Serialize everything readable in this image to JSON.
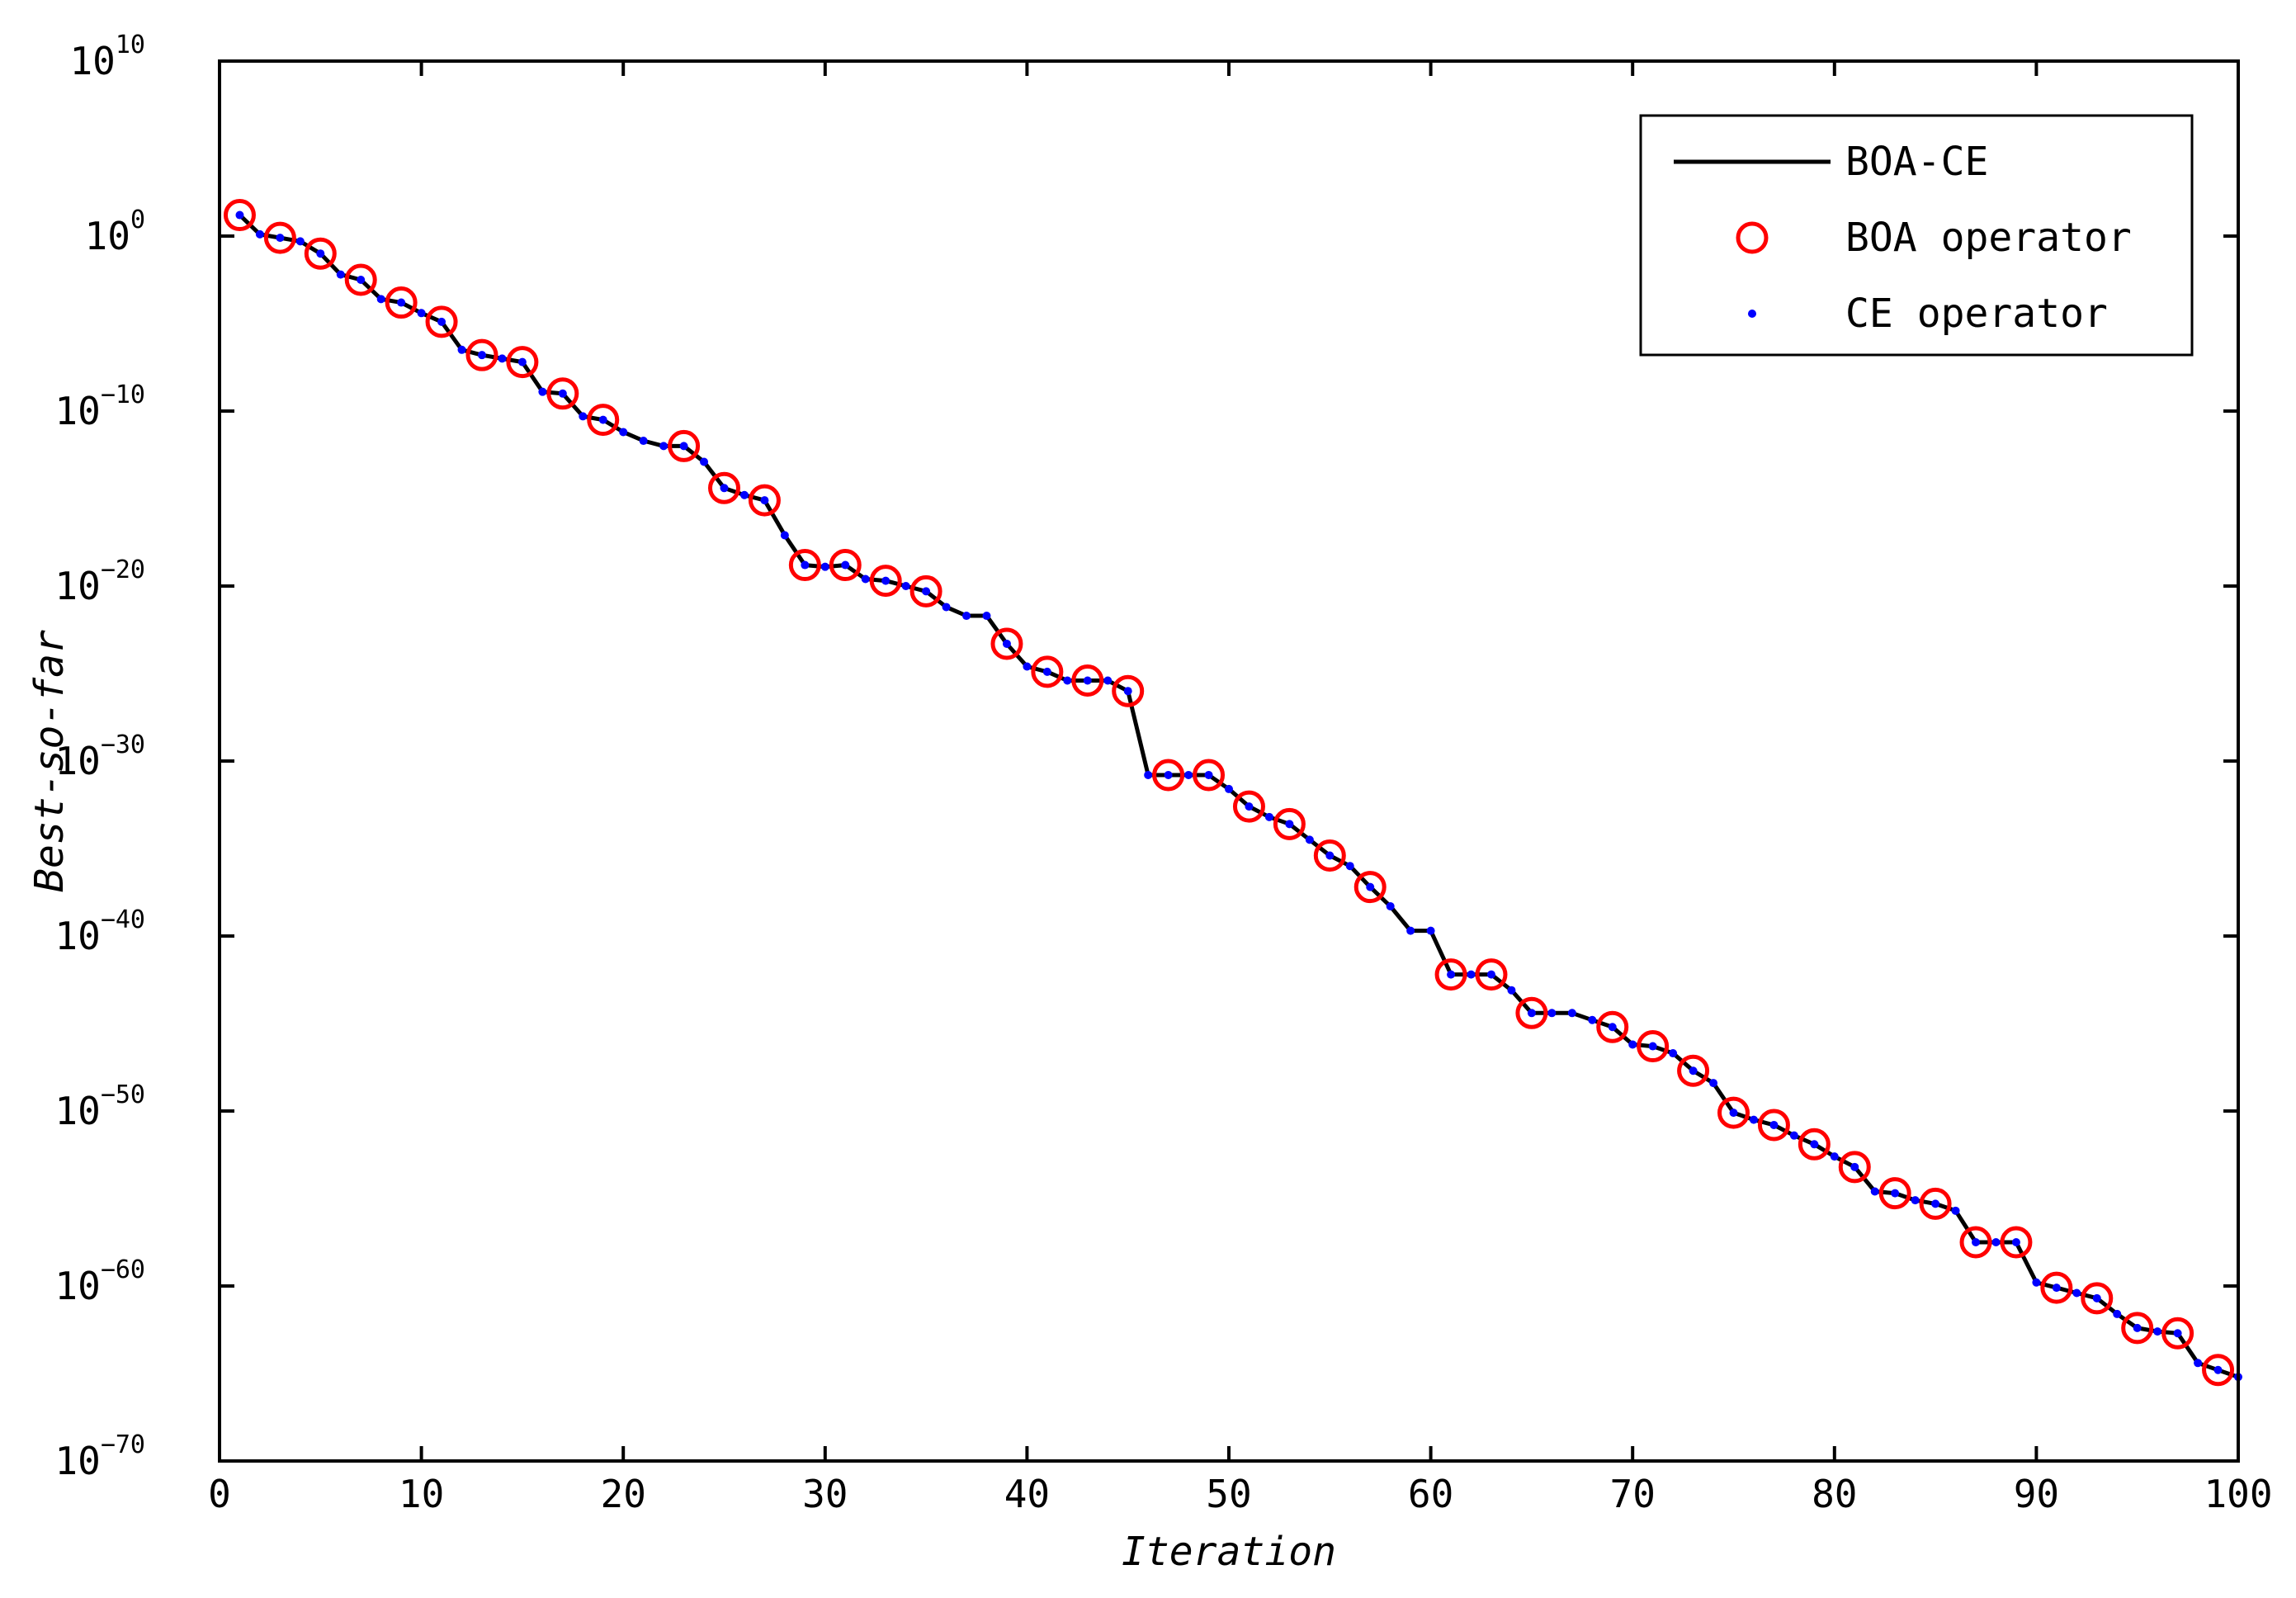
{
  "chart_data": {
    "type": "line",
    "xlabel": "Iteration",
    "ylabel": "Best-so-far",
    "xlim": [
      0,
      100
    ],
    "xticks": [
      0,
      10,
      20,
      30,
      40,
      50,
      60,
      70,
      80,
      90,
      100
    ],
    "ylim_log10": [
      -70,
      10
    ],
    "yscale": "log",
    "yticks": [
      {
        "base": "10",
        "exp": "10",
        "log10": 10
      },
      {
        "base": "10",
        "exp": "0",
        "log10": 0
      },
      {
        "base": "10",
        "exp": "−10",
        "log10": -10
      },
      {
        "base": "10",
        "exp": "−20",
        "log10": -20
      },
      {
        "base": "10",
        "exp": "−30",
        "log10": -30
      },
      {
        "base": "10",
        "exp": "−40",
        "log10": -40
      },
      {
        "base": "10",
        "exp": "−50",
        "log10": -50
      },
      {
        "base": "10",
        "exp": "−60",
        "log10": -60
      },
      {
        "base": "10",
        "exp": "−70",
        "log10": -70
      }
    ],
    "grid": false,
    "legend_position": "top-right",
    "legend": [
      {
        "label": "BOA-CE",
        "marker": "line",
        "color": "#000000"
      },
      {
        "label": "BOA operator",
        "marker": "circle",
        "color": "#ff0000"
      },
      {
        "label": "CE operator",
        "marker": "dot",
        "color": "#0000ff"
      }
    ],
    "x": [
      1,
      2,
      3,
      4,
      5,
      6,
      7,
      8,
      9,
      10,
      11,
      12,
      13,
      14,
      15,
      16,
      17,
      18,
      19,
      20,
      21,
      22,
      23,
      24,
      25,
      26,
      27,
      28,
      29,
      30,
      31,
      32,
      33,
      34,
      35,
      36,
      37,
      38,
      39,
      40,
      41,
      42,
      43,
      44,
      45,
      46,
      47,
      48,
      49,
      50,
      51,
      52,
      53,
      54,
      55,
      56,
      57,
      58,
      59,
      60,
      61,
      62,
      63,
      64,
      65,
      66,
      67,
      68,
      69,
      70,
      71,
      72,
      73,
      74,
      75,
      76,
      77,
      78,
      79,
      80,
      81,
      82,
      83,
      84,
      85,
      86,
      87,
      88,
      89,
      90,
      91,
      92,
      93,
      94,
      95,
      96,
      97,
      98,
      99,
      100
    ],
    "log10_best_so_far": [
      1.2,
      0.1,
      -0.1,
      -0.3,
      -1.0,
      -2.2,
      -2.5,
      -3.6,
      -3.8,
      -4.4,
      -4.9,
      -6.5,
      -6.8,
      -7.0,
      -7.2,
      -8.9,
      -9.0,
      -10.3,
      -10.5,
      -11.2,
      -11.7,
      -12.0,
      -12.0,
      -12.9,
      -14.4,
      -14.8,
      -15.1,
      -17.1,
      -18.8,
      -18.9,
      -18.8,
      -19.6,
      -19.7,
      -20.0,
      -20.3,
      -21.2,
      -21.7,
      -21.7,
      -23.3,
      -24.6,
      -24.9,
      -25.4,
      -25.4,
      -25.4,
      -26.0,
      -30.8,
      -30.8,
      -30.8,
      -30.8,
      -31.6,
      -32.6,
      -33.2,
      -33.6,
      -34.5,
      -35.4,
      -36.0,
      -37.2,
      -38.3,
      -39.7,
      -39.7,
      -42.2,
      -42.2,
      -42.2,
      -43.1,
      -44.4,
      -44.4,
      -44.4,
      -44.8,
      -45.2,
      -46.2,
      -46.3,
      -46.7,
      -47.7,
      -48.4,
      -50.1,
      -50.5,
      -50.8,
      -51.4,
      -51.9,
      -52.6,
      -53.2,
      -54.6,
      -54.7,
      -55.1,
      -55.3,
      -55.7,
      -57.5,
      -57.5,
      -57.5,
      -59.8,
      -60.1,
      -60.4,
      -60.7,
      -61.6,
      -62.4,
      -62.6,
      -62.7,
      -64.4,
      -64.8,
      -65.2
    ],
    "series": [
      {
        "name": "BOA-CE",
        "values_ref": "log10_best_so_far",
        "style": "line",
        "color": "#000000"
      },
      {
        "name": "BOA operator",
        "iterations": [
          1,
          3,
          5,
          7,
          9,
          11,
          13,
          15,
          17,
          19,
          23,
          25,
          27,
          29,
          31,
          33,
          35,
          39,
          41,
          43,
          45,
          47,
          49,
          51,
          53,
          55,
          57,
          61,
          63,
          65,
          69,
          71,
          73,
          75,
          77,
          79,
          81,
          83,
          85,
          87,
          89,
          91,
          93,
          95,
          97,
          99
        ],
        "style": "circle",
        "color": "#ff0000"
      },
      {
        "name": "CE operator",
        "iterations": "all",
        "style": "dot",
        "color": "#0000ff"
      }
    ]
  }
}
